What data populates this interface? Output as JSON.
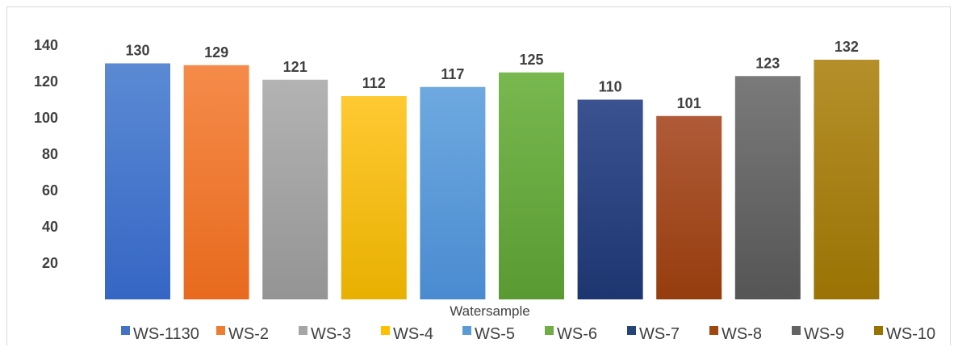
{
  "chart_data": {
    "type": "bar",
    "title": "",
    "xlabel": "Watersample",
    "ylabel": "",
    "yticks": [
      20,
      40,
      60,
      80,
      100,
      120,
      140
    ],
    "ylim": [
      10,
      150
    ],
    "grid": false,
    "legend_position": "bottom",
    "categories": [
      "WS-1130",
      "WS-2",
      "WS-3",
      "WS-4",
      "WS-5",
      "WS-6",
      "WS-7",
      "WS-8",
      "WS-9",
      "WS-10"
    ],
    "values": [
      130,
      129,
      121,
      112,
      117,
      125,
      110,
      101,
      123,
      132
    ],
    "data_labels": [
      "130",
      "129",
      "121",
      "112",
      "117",
      "125",
      "110",
      "101",
      "123",
      "132"
    ],
    "colors": [
      {
        "light": "#5b8ad4",
        "dark": "#3566c4"
      },
      {
        "light": "#f58b4a",
        "dark": "#e76a1e"
      },
      {
        "light": "#b3b3b3",
        "dark": "#949494"
      },
      {
        "light": "#ffc933",
        "dark": "#e8b000"
      },
      {
        "light": "#6ea9e0",
        "dark": "#4a8bd0"
      },
      {
        "light": "#78b84f",
        "dark": "#5a9a32"
      },
      {
        "light": "#3b5291",
        "dark": "#1d3670"
      },
      {
        "light": "#b05b38",
        "dark": "#963d0e"
      },
      {
        "light": "#7a7a7a",
        "dark": "#555555"
      },
      {
        "light": "#b58f2a",
        "dark": "#9a7304"
      }
    ],
    "legend_colors": [
      "#4472c4",
      "#ed7d31",
      "#a5a5a5",
      "#ffc000",
      "#5b9bd5",
      "#70ad47",
      "#264478",
      "#9e480e",
      "#636363",
      "#997300"
    ]
  }
}
